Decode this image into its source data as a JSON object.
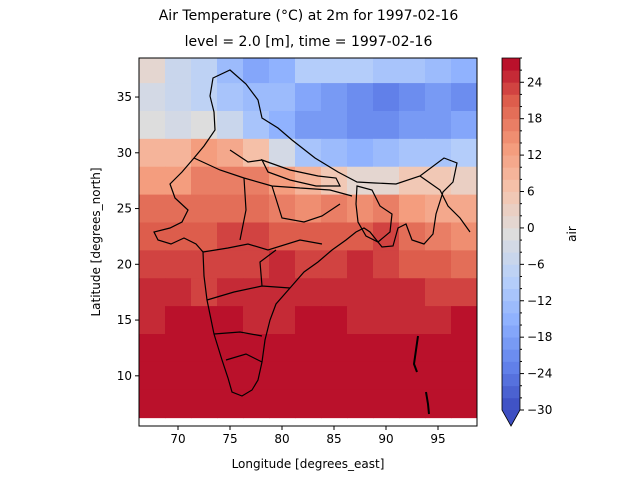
{
  "chart_data": {
    "type": "heatmap",
    "title": "Air Temperature (°C) at 2m for 1997-02-16",
    "subtitle": "level = 2.0 [m], time = 1997-02-16",
    "xlabel": "Longitude [degrees_east]",
    "ylabel": "Latitude [degrees_north]",
    "colorbar_label": "air",
    "xlim": [
      66.25,
      98.75
    ],
    "ylim": [
      5.5,
      38.5
    ],
    "grid_step": 2.5,
    "x_ticks": [
      70,
      75,
      80,
      85,
      90,
      95
    ],
    "y_ticks": [
      10,
      15,
      20,
      25,
      30,
      35
    ],
    "colorbar_range": [
      -30,
      28
    ],
    "colorbar_ticks": [
      -30,
      -24,
      -18,
      -12,
      -6,
      0,
      6,
      12,
      18,
      24
    ],
    "colorbar_extend": "min",
    "colormap": "coolwarm",
    "grid": false,
    "x_centers": [
      67.5,
      70.0,
      72.5,
      75.0,
      77.5,
      80.0,
      82.5,
      85.0,
      87.5,
      90.0,
      92.5,
      95.0,
      97.5
    ],
    "y_centers": [
      37.5,
      35.0,
      32.5,
      30.0,
      27.5,
      25.0,
      22.5,
      20.0,
      17.5,
      15.0,
      12.5,
      10.0,
      7.5
    ],
    "values": [
      [
        0,
        -6,
        -8,
        -14,
        -17,
        -16,
        -10,
        -9,
        -10,
        -11,
        -12,
        -14,
        -15
      ],
      [
        -3,
        -6,
        -7,
        -11,
        -14,
        -14,
        -17,
        -19,
        -22,
        -23,
        -22,
        -20,
        -22
      ],
      [
        -1,
        -4,
        -1,
        -5,
        -11,
        -15,
        -19,
        -20,
        -22,
        -21,
        -20,
        -19,
        -17
      ],
      [
        8,
        9,
        12,
        10,
        6,
        -4,
        -12,
        -14,
        -15,
        -14,
        -11,
        -11,
        -10
      ],
      [
        13,
        13,
        16,
        16,
        16,
        12,
        8,
        4,
        1,
        0,
        4,
        5,
        3
      ],
      [
        18,
        18,
        19,
        19,
        19,
        17,
        15,
        16,
        14,
        17,
        13,
        11,
        10
      ],
      [
        21,
        20,
        21,
        22,
        22,
        21,
        20,
        20,
        21,
        22,
        19,
        17,
        15
      ],
      [
        23,
        23,
        22,
        22,
        23,
        24,
        23,
        23,
        24,
        23,
        21,
        20,
        19
      ],
      [
        24,
        24,
        23,
        24,
        24,
        25,
        25,
        25,
        25,
        24,
        24,
        23,
        22
      ],
      [
        25,
        26,
        27,
        26,
        25,
        25,
        26,
        26,
        25,
        25,
        25,
        25,
        26
      ],
      [
        28,
        28,
        28,
        28,
        28,
        27,
        27,
        28,
        28,
        28,
        28,
        28,
        28
      ],
      [
        28,
        28,
        28,
        28,
        28,
        28,
        28,
        28,
        28,
        28,
        28,
        28,
        28
      ],
      [
        28,
        28,
        28,
        28,
        28,
        28,
        28,
        28,
        28,
        28,
        28,
        28,
        28
      ]
    ]
  }
}
